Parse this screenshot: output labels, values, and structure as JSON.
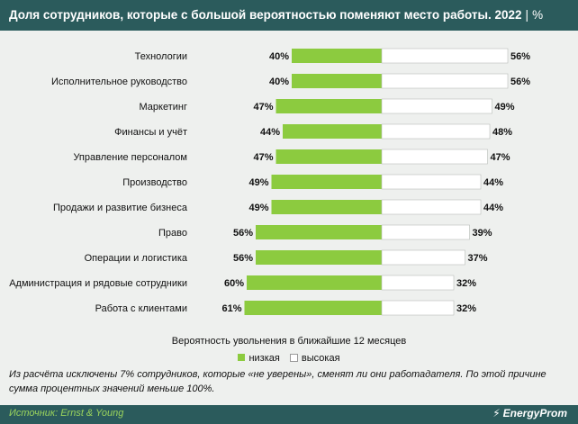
{
  "header": {
    "title": "Доля сотрудников, которые с большой вероятностью поменяют место работы. 2022",
    "separator": "|",
    "unit": "%"
  },
  "chart_data": {
    "type": "bar",
    "orientation": "horizontal-diverging",
    "categories": [
      "Технологии",
      "Исполнительное руководство",
      "Маркетинг",
      "Финансы и учёт",
      "Управление персоналом",
      "Производство",
      "Продажи и развитие бизнеса",
      "Право",
      "Операции и логистика",
      "Администрация и рядовые сотрудники",
      "Работа с клиентами"
    ],
    "series": [
      {
        "name": "низкая",
        "color": "#8ccb3f",
        "values": [
          40,
          40,
          47,
          44,
          47,
          49,
          49,
          56,
          56,
          60,
          61
        ]
      },
      {
        "name": "высокая",
        "color": "#ffffff",
        "values": [
          56,
          56,
          49,
          48,
          47,
          44,
          44,
          39,
          37,
          32,
          32
        ]
      }
    ],
    "value_suffix": "%",
    "xlabel": "Вероятность увольнения в ближайшие 12 месяцев",
    "legend_position": "bottom"
  },
  "note": "Из расчёта исключены 7% сотрудников, которые «не уверены», сменят ли они работадателя. По этой причине сумма процентных значений меньше 100%.",
  "footer": {
    "source": "Источник: Ernst & Young",
    "brand": "EnergyProm",
    "logo_icon": "energyprom-logo-icon"
  }
}
